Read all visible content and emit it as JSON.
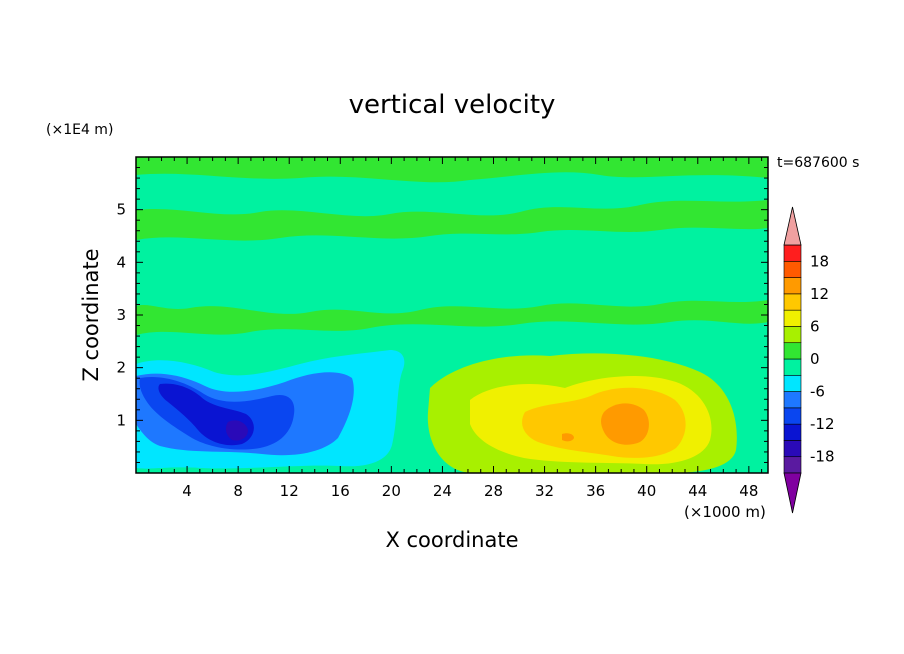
{
  "chart_data": {
    "type": "heatmap",
    "title": "vertical velocity",
    "xlabel": "X coordinate",
    "ylabel": "Z coordinate",
    "x_unit": "(×1000 m)",
    "y_unit": "(×1E4 m)",
    "time_label": "t=687600 s",
    "xlim": [
      0,
      49.5
    ],
    "ylim": [
      0,
      6
    ],
    "x_ticks": [
      "4",
      "8",
      "12",
      "16",
      "20",
      "24",
      "28",
      "32",
      "36",
      "40",
      "44",
      "48"
    ],
    "y_ticks": [
      "1",
      "2",
      "3",
      "4",
      "5"
    ],
    "colorbar": {
      "levels": [
        -21,
        -18,
        -15,
        -12,
        -9,
        -6,
        -3,
        0,
        3,
        6,
        9,
        12,
        15,
        18,
        21
      ],
      "tick_labels": [
        "18",
        "12",
        "6",
        "0",
        "-6",
        "-12",
        "-18"
      ],
      "tick_values": [
        18,
        12,
        6,
        0,
        -6,
        -12,
        -18
      ],
      "colors": [
        "#8000a0",
        "#5a1aa0",
        "#2a0ab8",
        "#0a14d2",
        "#0a46f0",
        "#1e78ff",
        "#00e6ff",
        "#00f2a0",
        "#32e632",
        "#a8f000",
        "#f0f000",
        "#ffc800",
        "#ff9a00",
        "#ff5a00",
        "#ff1e1e",
        "#f0a0a0"
      ]
    },
    "features": [
      {
        "kind": "updraft",
        "x_range": [
          24,
          47
        ],
        "z_range": [
          0.2,
          2.3
        ],
        "peak_x": 38.5,
        "peak_z": 0.95,
        "peak_value": 13
      },
      {
        "kind": "downdraft",
        "x_range": [
          0,
          22
        ],
        "z_range": [
          0.2,
          2.2
        ],
        "peak_x": 8,
        "peak_z": 0.8,
        "peak_value": -14
      },
      {
        "kind": "weak-updraft-layer",
        "z_range": [
          2.5,
          6
        ],
        "value_range": [
          0,
          3
        ]
      }
    ]
  }
}
